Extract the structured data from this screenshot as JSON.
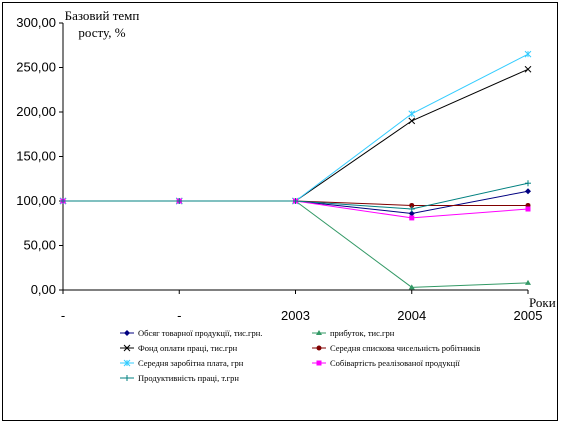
{
  "chart_data": {
    "type": "line",
    "ylabel_lines": [
      "Базовий темп",
      "росту, %"
    ],
    "xlabel": "Роки",
    "categories": [
      "-",
      "-",
      "2003",
      "2004",
      "2005"
    ],
    "ylim": [
      0,
      300
    ],
    "yticks": [
      "0,00",
      "50,00",
      "100,00",
      "150,00",
      "200,00",
      "250,00",
      "300,00"
    ],
    "grid": false,
    "legend_position": "bottom",
    "series": [
      {
        "name": "Обсяг товарної продукції, тис.грн.",
        "color": "#000080",
        "marker": "diamond",
        "values": [
          100,
          100,
          100,
          86,
          111
        ]
      },
      {
        "name": "прибуток, тис.грн",
        "color": "#339966",
        "marker": "triangle",
        "values": [
          100,
          100,
          100,
          3,
          8
        ]
      },
      {
        "name": "Фонд оплати праці, тис.грн",
        "color": "#000000",
        "marker": "x",
        "values": [
          100,
          100,
          100,
          190,
          248
        ]
      },
      {
        "name": "Середня спискова чисельність робітників",
        "color": "#800000",
        "marker": "circle",
        "values": [
          100,
          100,
          100,
          95,
          95
        ]
      },
      {
        "name": "Середня заробітна плата, грн",
        "color": "#33CCFF",
        "marker": "star",
        "values": [
          100,
          100,
          100,
          198,
          265
        ]
      },
      {
        "name": "Собівартість реалізованої продукції",
        "color": "#FF00FF",
        "marker": "square",
        "values": [
          100,
          100,
          100,
          81,
          91
        ]
      },
      {
        "name": "Продуктивність праці, т.грн",
        "color": "#008080",
        "marker": "plus",
        "values": [
          100,
          100,
          100,
          91,
          120
        ]
      }
    ]
  }
}
